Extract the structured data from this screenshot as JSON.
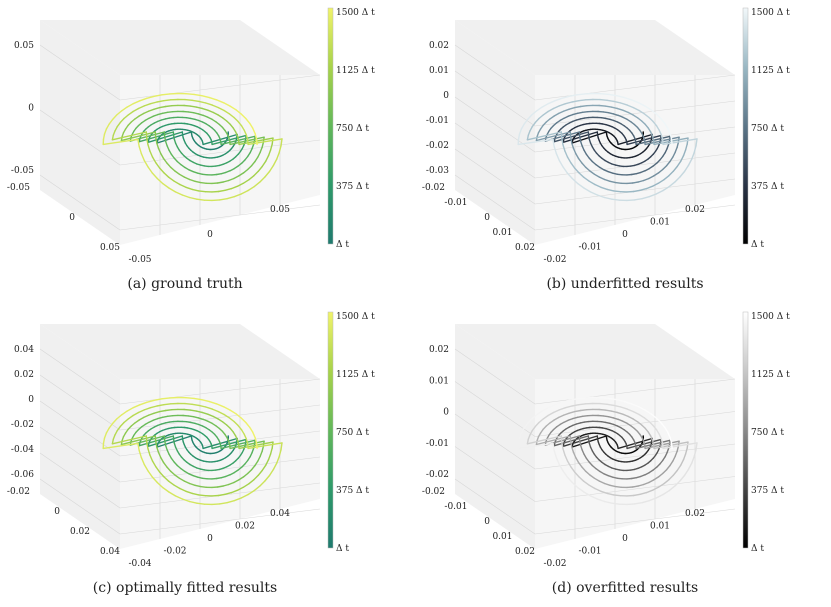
{
  "captions": [
    "(a) ground truth",
    "(b) underfitted results",
    "(c) optimally fitted results",
    "(d) overfitted results"
  ],
  "colorbar_ticks": [
    "1500 Δ t",
    "1125 Δ t",
    "750 Δ t",
    "375 Δ t",
    "Δ t"
  ],
  "colormaps": {
    "viridis_like": [
      "#1f7a6e",
      "#2e9a6a",
      "#62b85a",
      "#a8d34a",
      "#f0f36a"
    ],
    "bone_like": [
      "#000000",
      "#2a3446",
      "#5c7688",
      "#9ab8c4",
      "#f2f8fa"
    ],
    "gray": [
      "#000000",
      "#444444",
      "#8a8a8a",
      "#c8c8c8",
      "#ffffff"
    ]
  },
  "chart_data": [
    {
      "type": "line",
      "title": "(a) ground truth",
      "colormap": "viridis_like",
      "axes": {
        "z_ticks": [
          "0.05",
          "0",
          "-0.05"
        ],
        "x_ticks": [
          "-0.05",
          "0",
          "0.05"
        ],
        "y_ticks": [
          "-0.05",
          "0",
          "0.05"
        ]
      },
      "colorbar_range": [
        1,
        1500
      ],
      "grid": true
    },
    {
      "type": "line",
      "title": "(b) underfitted results",
      "colormap": "bone_like",
      "axes": {
        "z_ticks": [
          "0.02",
          "0.01",
          "0",
          "-0.01",
          "-0.02",
          "-0.03"
        ],
        "x_ticks": [
          "-0.02",
          "-0.01",
          "0",
          "0.01",
          "0.02"
        ],
        "y_ticks": [
          "-0.02",
          "-0.01",
          "0",
          "0.01",
          "0.02"
        ]
      },
      "colorbar_range": [
        1,
        1500
      ],
      "grid": true
    },
    {
      "type": "line",
      "title": "(c) optimally fitted results",
      "colormap": "viridis_like",
      "axes": {
        "z_ticks": [
          "0.04",
          "0.02",
          "0",
          "-0.02",
          "-0.04",
          "-0.06"
        ],
        "x_ticks": [
          "-0.04",
          "-0.02",
          "0",
          "0.02",
          "0.04"
        ],
        "y_ticks": [
          "-0.02",
          "0",
          "0.02",
          "0.04"
        ]
      },
      "colorbar_range": [
        1,
        1500
      ],
      "grid": true
    },
    {
      "type": "line",
      "title": "(d) overfitted results",
      "colormap": "gray",
      "axes": {
        "z_ticks": [
          "0.02",
          "0.01",
          "0",
          "-0.01",
          "-0.02"
        ],
        "x_ticks": [
          "-0.02",
          "-0.01",
          "0",
          "0.01",
          "0.02"
        ],
        "y_ticks": [
          "-0.02",
          "-0.01",
          "0",
          "0.01",
          "0.02"
        ]
      },
      "colorbar_range": [
        1,
        1500
      ],
      "grid": true
    }
  ]
}
